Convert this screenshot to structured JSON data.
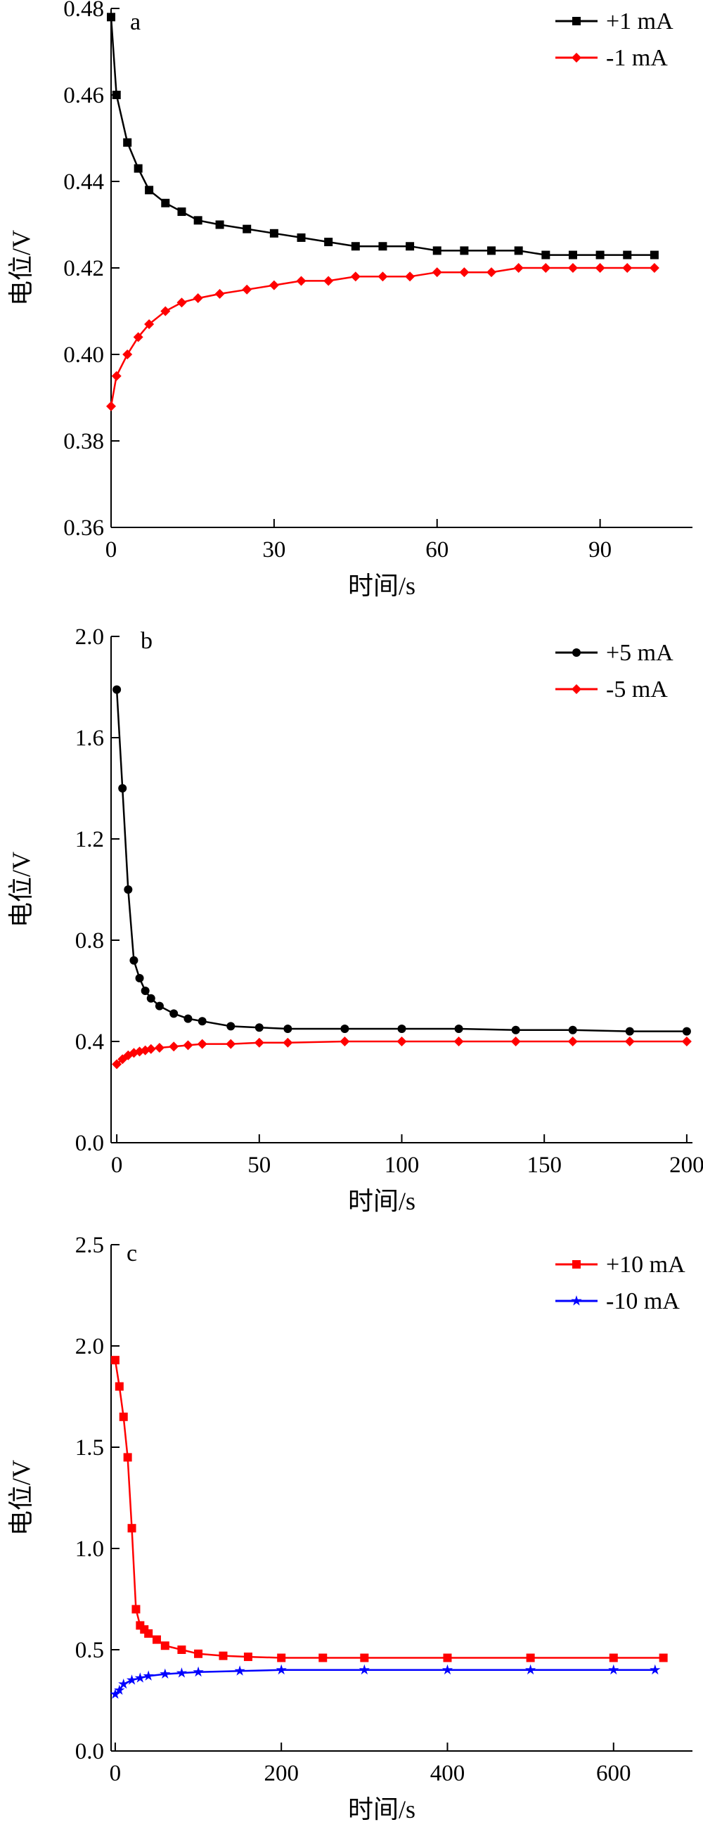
{
  "chart_data": [
    {
      "panel": "a",
      "type": "line",
      "xlabel": "时间/s",
      "ylabel": "电位/V",
      "xlim": [
        0,
        107
      ],
      "ylim": [
        0.36,
        0.48
      ],
      "xticks": [
        0,
        30,
        60,
        90
      ],
      "yticks": [
        0.36,
        0.38,
        0.4,
        0.42,
        0.44,
        0.46,
        0.48
      ],
      "ytick_format": 2,
      "legend": "top-right",
      "grid": false,
      "series": [
        {
          "name": "+1 mA",
          "color": "#000000",
          "marker": "square",
          "x": [
            0,
            1,
            3,
            5,
            7,
            10,
            13,
            16,
            20,
            25,
            30,
            35,
            40,
            45,
            50,
            55,
            60,
            65,
            70,
            75,
            80,
            85,
            90,
            95,
            100
          ],
          "y": [
            0.478,
            0.46,
            0.449,
            0.443,
            0.438,
            0.435,
            0.433,
            0.431,
            0.43,
            0.429,
            0.428,
            0.427,
            0.426,
            0.425,
            0.425,
            0.425,
            0.424,
            0.424,
            0.424,
            0.424,
            0.423,
            0.423,
            0.423,
            0.423,
            0.423
          ]
        },
        {
          "name": "-1 mA",
          "color": "#ff0000",
          "marker": "diamond",
          "x": [
            0,
            1,
            3,
            5,
            7,
            10,
            13,
            16,
            20,
            25,
            30,
            35,
            40,
            45,
            50,
            55,
            60,
            65,
            70,
            75,
            80,
            85,
            90,
            95,
            100
          ],
          "y": [
            0.388,
            0.395,
            0.4,
            0.404,
            0.407,
            0.41,
            0.412,
            0.413,
            0.414,
            0.415,
            0.416,
            0.417,
            0.417,
            0.418,
            0.418,
            0.418,
            0.419,
            0.419,
            0.419,
            0.42,
            0.42,
            0.42,
            0.42,
            0.42,
            0.42
          ]
        }
      ]
    },
    {
      "panel": "b",
      "type": "line",
      "xlabel": "时间/s",
      "ylabel": "电位/V",
      "xlim": [
        -2,
        202
      ],
      "ylim": [
        0.0,
        2.0
      ],
      "xticks": [
        0,
        50,
        100,
        150,
        200
      ],
      "yticks": [
        0.0,
        0.4,
        0.8,
        1.2,
        1.6,
        2.0
      ],
      "ytick_format": 1,
      "legend": "top-right",
      "grid": false,
      "series": [
        {
          "name": "+5 mA",
          "color": "#000000",
          "marker": "circle",
          "x": [
            0,
            2,
            4,
            6,
            8,
            10,
            12,
            15,
            20,
            25,
            30,
            40,
            50,
            60,
            80,
            100,
            120,
            140,
            160,
            180,
            200
          ],
          "y": [
            1.79,
            1.4,
            1.0,
            0.72,
            0.65,
            0.6,
            0.57,
            0.54,
            0.51,
            0.49,
            0.48,
            0.46,
            0.455,
            0.45,
            0.45,
            0.45,
            0.45,
            0.445,
            0.445,
            0.44,
            0.44
          ]
        },
        {
          "name": "-5 mA",
          "color": "#ff0000",
          "marker": "diamond",
          "x": [
            0,
            2,
            4,
            6,
            8,
            10,
            12,
            15,
            20,
            25,
            30,
            40,
            50,
            60,
            80,
            100,
            120,
            140,
            160,
            180,
            200
          ],
          "y": [
            0.31,
            0.33,
            0.345,
            0.355,
            0.36,
            0.365,
            0.37,
            0.375,
            0.38,
            0.385,
            0.39,
            0.39,
            0.395,
            0.395,
            0.4,
            0.4,
            0.4,
            0.4,
            0.4,
            0.4,
            0.4
          ]
        }
      ]
    },
    {
      "panel": "c",
      "type": "line",
      "xlabel": "时间/s",
      "ylabel": "电位/V",
      "xlim": [
        -5,
        695
      ],
      "ylim": [
        0.0,
        2.5
      ],
      "xticks": [
        0,
        200,
        400,
        600
      ],
      "yticks": [
        0.0,
        0.5,
        1.0,
        1.5,
        2.0,
        2.5
      ],
      "ytick_format": 1,
      "legend": "top-right",
      "grid": false,
      "series": [
        {
          "name": "+10 mA",
          "color": "#ff0000",
          "marker": "square",
          "x": [
            0,
            5,
            10,
            15,
            20,
            25,
            30,
            35,
            40,
            50,
            60,
            80,
            100,
            130,
            160,
            200,
            250,
            300,
            400,
            500,
            600,
            660
          ],
          "y": [
            1.93,
            1.8,
            1.65,
            1.45,
            1.1,
            0.7,
            0.62,
            0.6,
            0.58,
            0.55,
            0.52,
            0.5,
            0.48,
            0.47,
            0.465,
            0.46,
            0.46,
            0.46,
            0.46,
            0.46,
            0.46,
            0.46
          ]
        },
        {
          "name": "-10 mA",
          "color": "#0000ff",
          "marker": "star",
          "x": [
            0,
            5,
            10,
            20,
            30,
            40,
            60,
            80,
            100,
            150,
            200,
            300,
            400,
            500,
            600,
            650
          ],
          "y": [
            0.28,
            0.3,
            0.33,
            0.35,
            0.36,
            0.37,
            0.38,
            0.385,
            0.39,
            0.395,
            0.4,
            0.4,
            0.4,
            0.4,
            0.4,
            0.4
          ]
        }
      ]
    }
  ],
  "panel_labels": [
    "a",
    "b",
    "c"
  ]
}
